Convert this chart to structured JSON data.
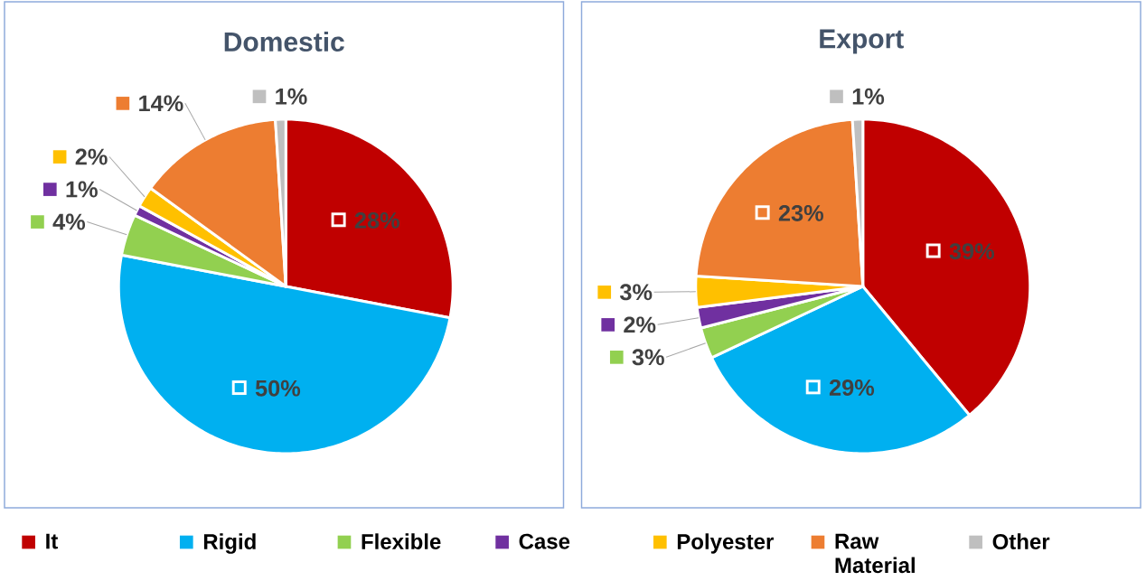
{
  "chart_data": [
    {
      "type": "pie",
      "title": "Domestic",
      "categories": [
        "It",
        "Rigid",
        "Flexible",
        "Case",
        "Polyester",
        "Raw Material",
        "Other"
      ],
      "values": [
        28,
        50,
        4,
        1,
        2,
        14,
        1
      ],
      "colors": [
        "#c00000",
        "#00b0f0",
        "#92d050",
        "#7030a0",
        "#ffc000",
        "#ed7d31",
        "#bfbfbf"
      ],
      "value_labels": [
        "28%",
        "50%",
        "4%",
        "1%",
        "2%",
        "14%",
        "1%"
      ],
      "legend": "bottom"
    },
    {
      "type": "pie",
      "title": "Export",
      "categories": [
        null,
        null,
        null,
        null,
        null,
        null,
        null
      ],
      "values": [
        39,
        29,
        3,
        2,
        3,
        23,
        1
      ],
      "colors": [
        "#c00000",
        "#00b0f0",
        "#92d050",
        "#7030a0",
        "#ffc000",
        "#ed7d31",
        "#bfbfbf"
      ],
      "value_labels": [
        "39%",
        "29%",
        "3%",
        "2%",
        "3%",
        "23%",
        "1%"
      ]
    }
  ]
}
